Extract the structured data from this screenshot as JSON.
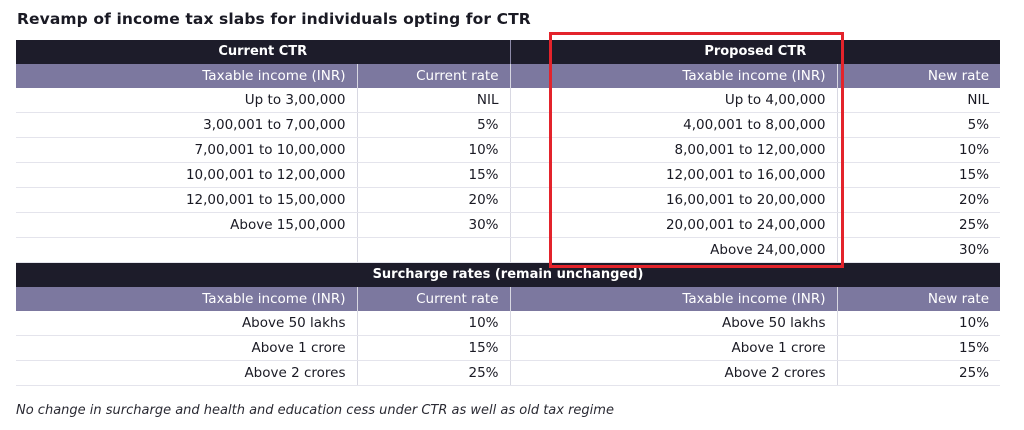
{
  "title": "Revamp of income tax slabs for individuals opting for CTR",
  "groups": {
    "current": "Current CTR",
    "proposed": "Proposed CTR"
  },
  "columns": {
    "current_income": "Taxable income (INR)",
    "current_rate": "Current rate",
    "proposed_income": "Taxable income (INR)",
    "new_rate": "New rate"
  },
  "slab_rows": [
    {
      "current_income": "Up to 3,00,000",
      "current_rate": "NIL",
      "proposed_income": "Up to 4,00,000",
      "new_rate": "NIL"
    },
    {
      "current_income": "3,00,001 to 7,00,000",
      "current_rate": "5%",
      "proposed_income": "4,00,001 to 8,00,000",
      "new_rate": "5%"
    },
    {
      "current_income": "7,00,001 to 10,00,000",
      "current_rate": "10%",
      "proposed_income": "8,00,001 to 12,00,000",
      "new_rate": "10%"
    },
    {
      "current_income": "10,00,001 to 12,00,000",
      "current_rate": "15%",
      "proposed_income": "12,00,001 to 16,00,000",
      "new_rate": "15%"
    },
    {
      "current_income": "12,00,001 to 15,00,000",
      "current_rate": "20%",
      "proposed_income": "16,00,001 to 20,00,000",
      "new_rate": "20%"
    },
    {
      "current_income": "Above 15,00,000",
      "current_rate": "30%",
      "proposed_income": "20,00,001 to 24,00,000",
      "new_rate": "25%"
    },
    {
      "current_income": "",
      "current_rate": "",
      "proposed_income": "Above 24,00,000",
      "new_rate": "30%"
    }
  ],
  "surcharge": {
    "heading": "Surcharge rates (remain unchanged)",
    "columns": {
      "current_income": "Taxable income (INR)",
      "current_rate": "Current rate",
      "proposed_income": "Taxable income (INR)",
      "new_rate": "New rate"
    },
    "rows": [
      {
        "current_income": "Above 50 lakhs",
        "current_rate": "10%",
        "proposed_income": "Above 50 lakhs",
        "new_rate": "10%"
      },
      {
        "current_income": "Above 1 crore",
        "current_rate": "15%",
        "proposed_income": "Above 1 crore",
        "new_rate": "15%"
      },
      {
        "current_income": "Above 2 crores",
        "current_rate": "25%",
        "proposed_income": "Above 2 crores",
        "new_rate": "25%"
      }
    ]
  },
  "footnote": "No change in surcharge and health and education cess under CTR as well as old tax regime",
  "colors": {
    "dark_header": "#1d1c2a",
    "purple_header": "#7c789f",
    "highlight": "#e3232b"
  }
}
